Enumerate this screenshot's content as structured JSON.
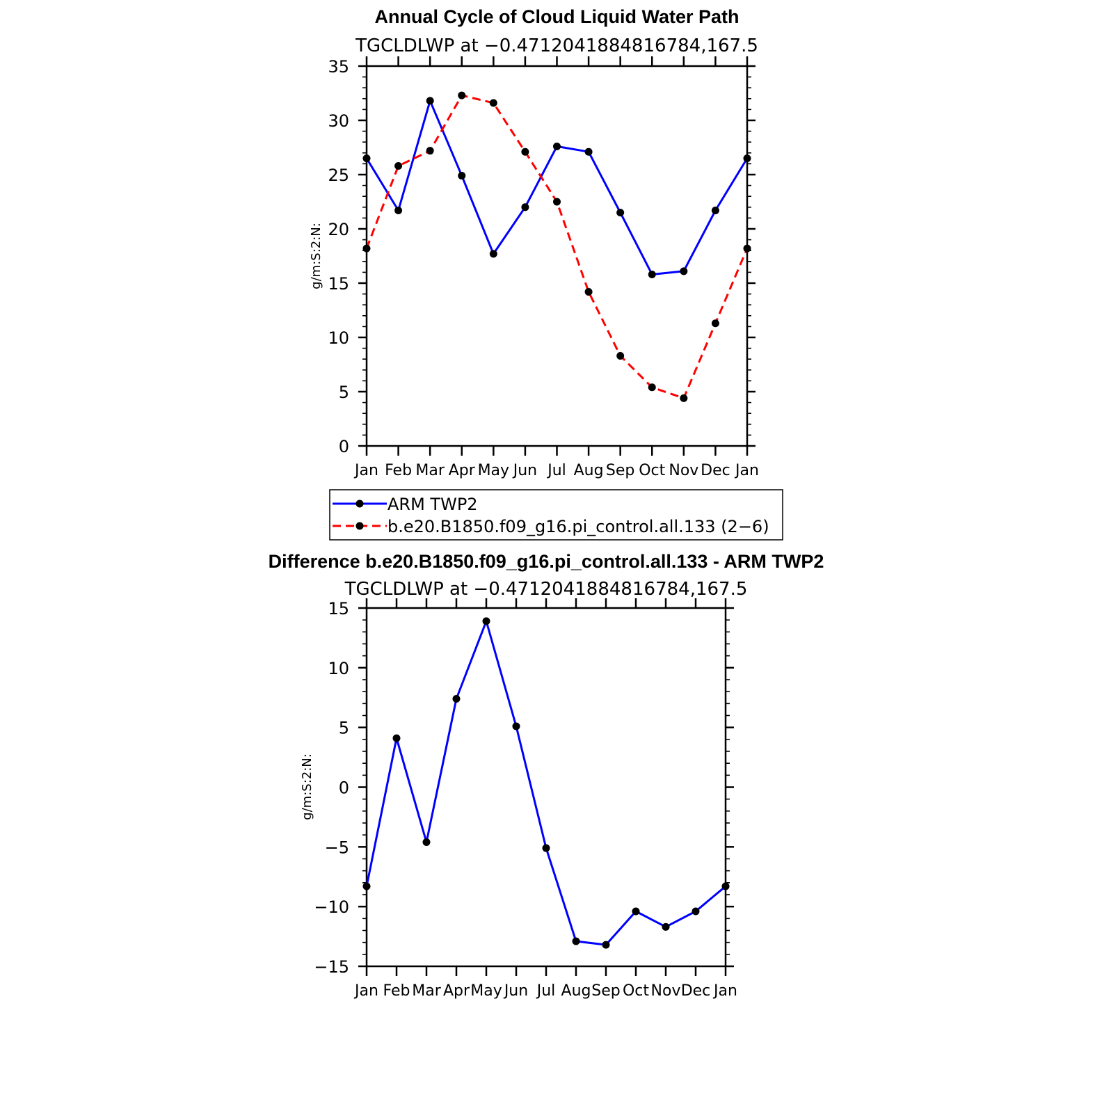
{
  "chart_data": [
    {
      "type": "line",
      "title": "Annual Cycle of Cloud Liquid Water Path",
      "subtitle": "TGCLDLWP at −0.4712041884816784,167.5",
      "xlabel": "",
      "ylabel": "g/m:S:2:N:",
      "categories": [
        "Jan",
        "Feb",
        "Mar",
        "Apr",
        "May",
        "Jun",
        "Jul",
        "Aug",
        "Sep",
        "Oct",
        "Nov",
        "Dec",
        "Jan"
      ],
      "ylim": [
        0,
        35
      ],
      "yticks": [
        "0",
        "5",
        "10",
        "15",
        "20",
        "25",
        "30",
        "35"
      ],
      "series": [
        {
          "name": "ARM TWP2",
          "color": "#0000ff",
          "dash": "solid",
          "values": [
            26.5,
            21.7,
            31.8,
            24.9,
            17.7,
            22.0,
            27.6,
            27.1,
            21.5,
            15.8,
            16.1,
            21.7,
            26.5
          ]
        },
        {
          "name": "b.e20.B1850.f09_g16.pi_control.all.133 (2−6)",
          "color": "#ff0000",
          "dash": "dashed",
          "values": [
            18.2,
            25.8,
            27.2,
            32.3,
            31.6,
            27.1,
            22.5,
            14.2,
            8.3,
            5.4,
            4.4,
            11.3,
            18.2
          ]
        }
      ],
      "legend": "below"
    },
    {
      "type": "line",
      "title": "Difference b.e20.B1850.f09_g16.pi_control.all.133 - ARM TWP2",
      "subtitle": "TGCLDLWP at −0.4712041884816784,167.5",
      "xlabel": "",
      "ylabel": "g/m:S:2:N:",
      "categories": [
        "Jan",
        "Feb",
        "Mar",
        "Apr",
        "May",
        "Jun",
        "Jul",
        "Aug",
        "Sep",
        "Oct",
        "Nov",
        "Dec",
        "Jan"
      ],
      "ylim": [
        -15,
        15
      ],
      "yticks": [
        "−15",
        "−10",
        "−5",
        "0",
        "5",
        "10",
        "15"
      ],
      "series": [
        {
          "name": "Difference",
          "color": "#0000ff",
          "dash": "solid",
          "values": [
            -8.3,
            4.1,
            -4.6,
            7.4,
            13.9,
            5.1,
            -5.1,
            -12.9,
            -13.2,
            -10.4,
            -11.7,
            -10.4,
            -8.3
          ]
        }
      ]
    }
  ],
  "colors": {
    "marker": "#000000",
    "axis": "#000000"
  }
}
